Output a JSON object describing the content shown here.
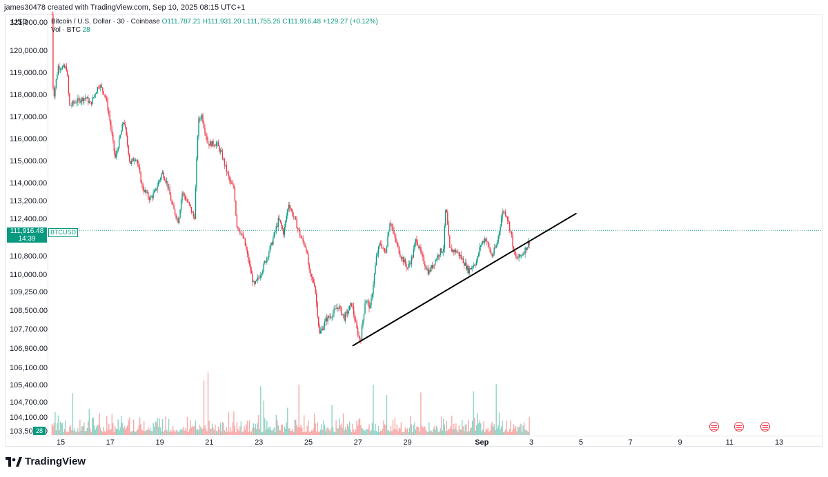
{
  "header": {
    "created_line": "james30478 created with TradingView.com, Sep 10, 2025 08:15 UTC+1"
  },
  "currency": "USD",
  "legend": {
    "title": "Bitcoin / U.S. Dollar · 30 · Coinbase",
    "o": "O111,787.21",
    "h": "H111,931.20",
    "l": "L111,755.26",
    "c": "C111,916.48",
    "change": "+129.27 (+0.12%)",
    "vol_label": "Vol · BTC",
    "vol_value": "28"
  },
  "price_tag": {
    "price": "111,916.48",
    "countdown": "14:39",
    "symbol": "BTCUSD"
  },
  "volume_tag": "28",
  "footer": {
    "logo_text": "TradingView"
  },
  "colors": {
    "up": "#089981",
    "down": "#f23645",
    "vol_up": "#8fd3c5",
    "vol_down": "#f7a9a7",
    "trendline": "#000000"
  },
  "chart_data": {
    "type": "candlestick",
    "symbol": "BTCUSD",
    "interval": "30",
    "y_ticks": [
      "121,000.00",
      "120,000.00",
      "119,000.00",
      "118,000.00",
      "117,000.00",
      "116,000.00",
      "115,000.00",
      "114,000.00",
      "113,200.00",
      "112,400.00",
      "110,800.00",
      "110,000.00",
      "109,250.00",
      "108,500.00",
      "107,700.00",
      "106,900.00",
      "106,100.00",
      "105,400.00",
      "104,700.00",
      "104,100.00",
      "103,500.00"
    ],
    "x_ticks": [
      {
        "label": "15",
        "bold": false
      },
      {
        "label": "17",
        "bold": false
      },
      {
        "label": "19",
        "bold": false
      },
      {
        "label": "21",
        "bold": false
      },
      {
        "label": "23",
        "bold": false
      },
      {
        "label": "25",
        "bold": false
      },
      {
        "label": "27",
        "bold": false
      },
      {
        "label": "29",
        "bold": false
      },
      {
        "label": "Sep",
        "bold": true
      },
      {
        "label": "3",
        "bold": false
      },
      {
        "label": "5",
        "bold": false
      },
      {
        "label": "7",
        "bold": false
      },
      {
        "label": "9",
        "bold": false
      },
      {
        "label": "11",
        "bold": false
      },
      {
        "label": "13",
        "bold": false
      }
    ],
    "day_index": {
      "Aug 15": 0,
      "Aug 17": 2,
      "Aug 19": 4,
      "Aug 21": 6,
      "Aug 23": 8,
      "Aug 25": 10,
      "Aug 27": 12,
      "Aug 29": 14,
      "Sep 1": 17,
      "Sep 3": 19,
      "Sep 5": 21,
      "Sep 7": 23,
      "Sep 9": 25,
      "Sep 11": 27,
      "Sep 13": 29
    },
    "price_path": [
      [
        -0.35,
        121300
      ],
      [
        -0.3,
        117800
      ],
      [
        -0.1,
        119300
      ],
      [
        0.25,
        119200
      ],
      [
        0.35,
        117500
      ],
      [
        0.6,
        117700
      ],
      [
        1.0,
        117900
      ],
      [
        1.2,
        117600
      ],
      [
        1.55,
        118500
      ],
      [
        1.8,
        118000
      ],
      [
        1.95,
        117100
      ],
      [
        2.2,
        115100
      ],
      [
        2.55,
        116900
      ],
      [
        2.8,
        114900
      ],
      [
        3.05,
        115200
      ],
      [
        3.3,
        113800
      ],
      [
        3.6,
        113300
      ],
      [
        3.8,
        113600
      ],
      [
        4.1,
        114500
      ],
      [
        4.3,
        114000
      ],
      [
        4.5,
        113000
      ],
      [
        4.75,
        112300
      ],
      [
        4.9,
        113600
      ],
      [
        5.2,
        113000
      ],
      [
        5.4,
        112400
      ],
      [
        5.55,
        116800
      ],
      [
        5.7,
        117100
      ],
      [
        5.8,
        116500
      ],
      [
        5.95,
        115800
      ],
      [
        6.3,
        115800
      ],
      [
        6.5,
        115300
      ],
      [
        6.85,
        114000
      ],
      [
        7.0,
        113800
      ],
      [
        7.1,
        112200
      ],
      [
        7.4,
        111500
      ],
      [
        7.6,
        110500
      ],
      [
        7.8,
        109500
      ],
      [
        8.0,
        109900
      ],
      [
        8.2,
        110400
      ],
      [
        8.5,
        111300
      ],
      [
        8.8,
        112400
      ],
      [
        9.0,
        111800
      ],
      [
        9.2,
        113100
      ],
      [
        9.45,
        112400
      ],
      [
        9.7,
        111600
      ],
      [
        9.9,
        111200
      ],
      [
        10.05,
        110000
      ],
      [
        10.25,
        109600
      ],
      [
        10.45,
        107500
      ],
      [
        10.7,
        108100
      ],
      [
        11.0,
        108400
      ],
      [
        11.2,
        108700
      ],
      [
        11.45,
        108200
      ],
      [
        11.75,
        108800
      ],
      [
        11.95,
        107700
      ],
      [
        12.1,
        107200
      ],
      [
        12.3,
        109000
      ],
      [
        12.5,
        108600
      ],
      [
        12.75,
        110800
      ],
      [
        12.9,
        111400
      ],
      [
        13.1,
        110900
      ],
      [
        13.3,
        112400
      ],
      [
        13.45,
        111700
      ],
      [
        13.7,
        110900
      ],
      [
        14.0,
        110300
      ],
      [
        14.2,
        110800
      ],
      [
        14.35,
        111600
      ],
      [
        14.6,
        110700
      ],
      [
        14.85,
        110100
      ],
      [
        15.05,
        110500
      ],
      [
        15.3,
        111000
      ],
      [
        15.45,
        111100
      ],
      [
        15.55,
        113000
      ],
      [
        15.7,
        111100
      ],
      [
        16.0,
        111000
      ],
      [
        16.2,
        110700
      ],
      [
        16.45,
        110200
      ],
      [
        16.8,
        110600
      ],
      [
        16.95,
        111300
      ],
      [
        17.15,
        111600
      ],
      [
        17.4,
        110800
      ],
      [
        17.6,
        111300
      ],
      [
        17.85,
        112800
      ],
      [
        18.0,
        112600
      ],
      [
        18.2,
        111700
      ],
      [
        18.3,
        110900
      ],
      [
        18.4,
        110700
      ],
      [
        18.55,
        110800
      ],
      [
        18.75,
        111100
      ],
      [
        18.95,
        111500
      ]
    ],
    "trendline": {
      "start": {
        "day_index": 11.8,
        "price": 107030
      },
      "end": {
        "day_index": 20.8,
        "price": 112650
      }
    },
    "last_price": 111916.48
  }
}
